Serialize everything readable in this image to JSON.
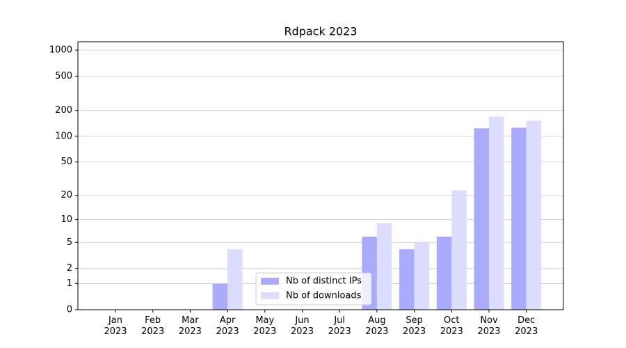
{
  "chart_data": {
    "type": "bar",
    "title": "Rdpack 2023",
    "categories": [
      "Jan 2023",
      "Feb 2023",
      "Mar 2023",
      "Apr 2023",
      "May 2023",
      "Jun 2023",
      "Jul 2023",
      "Aug 2023",
      "Sep 2023",
      "Oct 2023",
      "Nov 2023",
      "Dec 2023"
    ],
    "series": [
      {
        "name": "Nb of distinct IPs",
        "color": "#aaaaff",
        "values": [
          0,
          0,
          0,
          1,
          0,
          0,
          0,
          6,
          4,
          6,
          124,
          126
        ]
      },
      {
        "name": "Nb of downloads",
        "color": "#ddddff",
        "values": [
          0,
          0,
          0,
          4,
          0,
          0,
          0,
          9,
          5,
          23,
          170,
          152
        ]
      }
    ],
    "yscale": "symlog",
    "ylim": [
      0,
      1250
    ],
    "yticks": [
      0,
      1,
      2,
      5,
      10,
      20,
      50,
      100,
      200,
      500,
      1000
    ],
    "grid": true,
    "legend": "lower center"
  }
}
